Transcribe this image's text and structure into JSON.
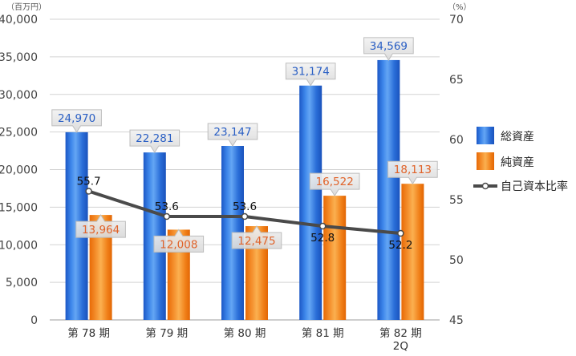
{
  "chart_data": {
    "type": "bar",
    "categories": [
      "第 78 期",
      "第 79 期",
      "第 80 期",
      "第 81 期",
      "第 82 期\n2Q"
    ],
    "left_axis_unit": "（百万円）",
    "right_axis_unit": "（%）",
    "ylim_left": [
      0,
      40000
    ],
    "ylim_right": [
      45,
      70
    ],
    "yticks_left": [
      "0",
      "5,000",
      "10,000",
      "15,000",
      "20,000",
      "25,000",
      "30,000",
      "35,000",
      "40,000"
    ],
    "yticks_right": [
      "45",
      "50",
      "55",
      "60",
      "65",
      "70"
    ],
    "grid": true,
    "legend_position": "right",
    "series": [
      {
        "name": "総資産",
        "kind": "bar",
        "axis": "left",
        "values": [
          24970,
          22281,
          23147,
          31174,
          34569
        ],
        "labels": [
          "24,970",
          "22,281",
          "23,147",
          "31,174",
          "34,569"
        ],
        "color": "#1f66d4",
        "label_color": "#2a5fc4"
      },
      {
        "name": "純資産",
        "kind": "bar",
        "axis": "left",
        "values": [
          13964,
          12008,
          12475,
          16522,
          18113
        ],
        "labels": [
          "13,964",
          "12,008",
          "12,475",
          "16,522",
          "18,113"
        ],
        "color": "#f07a12",
        "label_color": "#e0632a"
      },
      {
        "name": "自己資本比率",
        "kind": "line",
        "axis": "right",
        "values": [
          55.7,
          53.6,
          53.6,
          52.8,
          52.2
        ],
        "labels": [
          "55.7",
          "53.6",
          "53.6",
          "52.8",
          "52.2"
        ],
        "color": "#4a4a4a"
      }
    ]
  }
}
